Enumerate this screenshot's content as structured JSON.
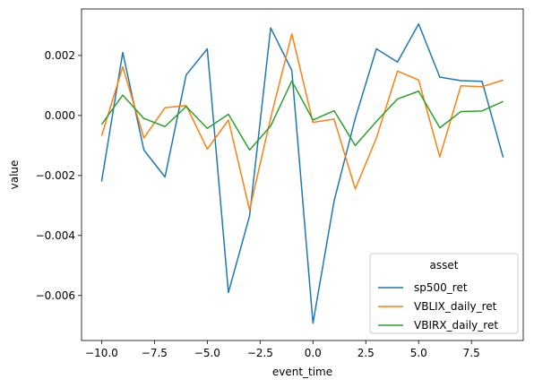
{
  "chart_data": {
    "type": "line",
    "xlabel": "event_time",
    "ylabel": "value",
    "xlim": [
      -10.95,
      9.95
    ],
    "ylim": [
      -0.0075,
      0.00355
    ],
    "xticks": [
      -10.0,
      -7.5,
      -5.0,
      -2.5,
      0.0,
      2.5,
      5.0,
      7.5
    ],
    "xtick_labels": [
      "−10.0",
      "−7.5",
      "−5.0",
      "−2.5",
      "0.0",
      "2.5",
      "5.0",
      "7.5"
    ],
    "yticks": [
      -0.006,
      -0.004,
      -0.002,
      0.0,
      0.002
    ],
    "ytick_labels": [
      "−0.006",
      "−0.004",
      "−0.002",
      "0.000",
      "0.002"
    ],
    "grid": false,
    "legend": {
      "title": "asset",
      "placement": "lower-right"
    },
    "x": [
      -10,
      -9,
      -8,
      -7,
      -6,
      -5,
      -4,
      -3,
      -2,
      -1,
      0,
      1,
      2,
      3,
      4,
      5,
      6,
      7,
      8,
      9
    ],
    "series": [
      {
        "name": "sp500_ret",
        "color": "#1f77b4",
        "values": [
          -0.0022,
          0.0021,
          -0.00115,
          -0.00205,
          0.00135,
          0.00222,
          -0.0059,
          -0.00335,
          0.00292,
          0.0015,
          -0.00692,
          -0.00285,
          -0.0001,
          0.00222,
          0.00178,
          0.00305,
          0.00128,
          0.00116,
          0.00114,
          -0.0014
        ]
      },
      {
        "name": "VBLIX_daily_ret",
        "color": "#ff7f0e",
        "values": [
          -0.00068,
          0.00162,
          -0.00075,
          0.00026,
          0.00033,
          -0.00112,
          -0.00015,
          -0.00315,
          -8e-05,
          0.00272,
          -0.00023,
          -0.00012,
          -0.00245,
          -0.00075,
          0.00148,
          0.00118,
          -0.00138,
          0.00099,
          0.00096,
          0.00118
        ]
      },
      {
        "name": "VBIRX_daily_ret",
        "color": "#2ca02c",
        "values": [
          -0.0003,
          0.00068,
          -0.0001,
          -0.00037,
          0.0003,
          -0.00043,
          4e-05,
          -0.00115,
          -0.00035,
          0.00115,
          -0.00015,
          0.00016,
          -0.001,
          -0.0002,
          0.00055,
          0.00081,
          -0.00041,
          0.00013,
          0.00015,
          0.00047
        ]
      }
    ]
  }
}
